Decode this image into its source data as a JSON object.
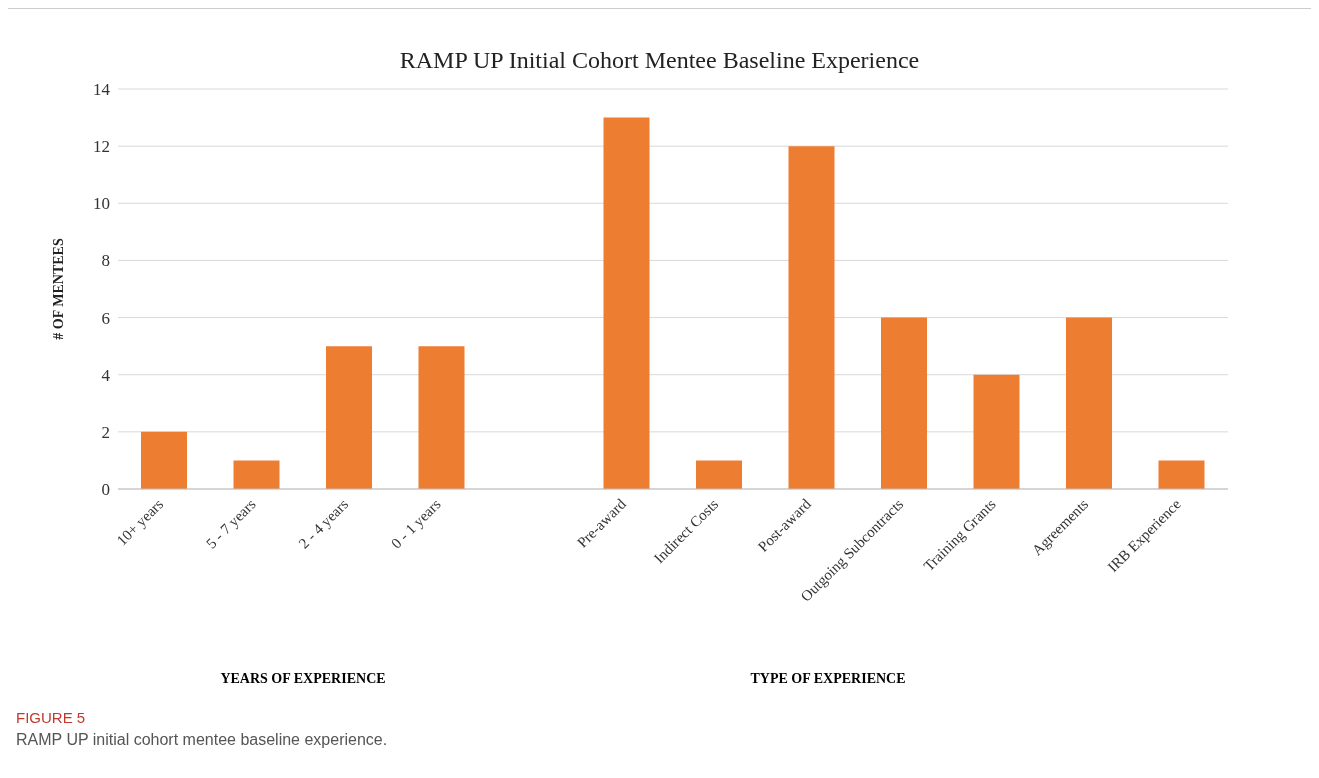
{
  "chart_data": {
    "type": "bar",
    "title": "RAMP UP Initial Cohort Mentee Baseline Experience",
    "ylabel": "# OF MENTEES",
    "categories": [
      "10+ years",
      "5 - 7 years",
      "2 - 4 years",
      "0 - 1 years",
      null,
      "Pre-award",
      "Indirect Costs",
      "Post-award",
      "Outgoing Subcontracts",
      "Training Grants",
      "Agreements",
      "IRB Experience"
    ],
    "values": [
      2,
      1,
      5,
      5,
      null,
      13,
      1,
      12,
      6,
      4,
      6,
      1
    ],
    "color": "#ed7d31",
    "ylim": [
      0,
      14
    ],
    "yticks": [
      0,
      2,
      4,
      6,
      8,
      10,
      12,
      14
    ],
    "grid": "y",
    "annotations": [
      "YEARS OF EXPERIENCE",
      "TYPE OF EXPERIENCE",
      "FIGURE 5",
      "RAMP UP initial cohort mentee baseline experience."
    ]
  }
}
